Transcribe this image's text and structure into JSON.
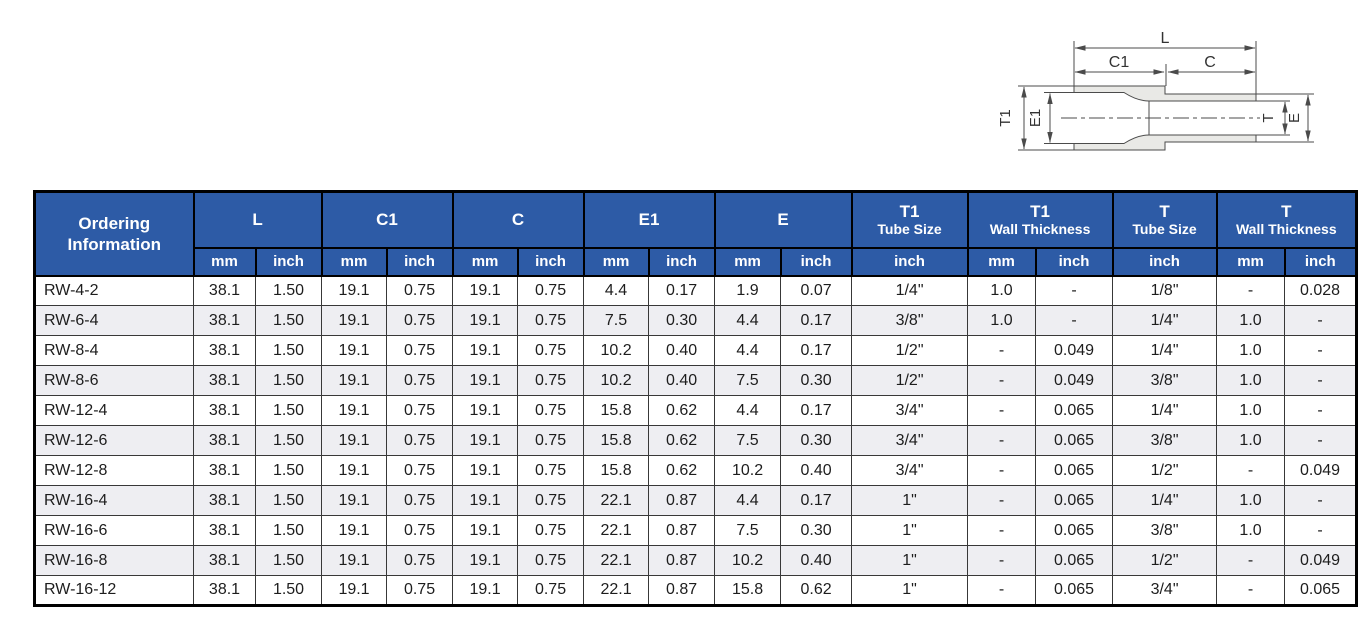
{
  "diagram": {
    "dim_length": "L",
    "dim_c1": "C1",
    "dim_c": "C",
    "dim_t1": "T1",
    "dim_e1": "E1",
    "dim_t": "T",
    "dim_e": "E"
  },
  "table": {
    "ordering_header": "Ordering Information",
    "groups": [
      {
        "label": "L",
        "sublabel": "",
        "sub": [
          "mm",
          "inch"
        ]
      },
      {
        "label": "C1",
        "sublabel": "",
        "sub": [
          "mm",
          "inch"
        ]
      },
      {
        "label": "C",
        "sublabel": "",
        "sub": [
          "mm",
          "inch"
        ]
      },
      {
        "label": "E1",
        "sublabel": "",
        "sub": [
          "mm",
          "inch"
        ]
      },
      {
        "label": "E",
        "sublabel": "",
        "sub": [
          "mm",
          "inch"
        ]
      },
      {
        "label": "T1",
        "sublabel": "Tube Size",
        "sub": [
          "inch"
        ]
      },
      {
        "label": "T1",
        "sublabel": "Wall Thickness",
        "sub": [
          "mm",
          "inch"
        ]
      },
      {
        "label": "T",
        "sublabel": "Tube Size",
        "sub": [
          "inch"
        ]
      },
      {
        "label": "T",
        "sublabel": "Wall Thickness",
        "sub": [
          "mm",
          "inch"
        ]
      }
    ],
    "rows": [
      [
        "RW-4-2",
        "38.1",
        "1.50",
        "19.1",
        "0.75",
        "19.1",
        "0.75",
        "4.4",
        "0.17",
        "1.9",
        "0.07",
        "1/4\"",
        "1.0",
        "-",
        "1/8\"",
        "-",
        "0.028"
      ],
      [
        "RW-6-4",
        "38.1",
        "1.50",
        "19.1",
        "0.75",
        "19.1",
        "0.75",
        "7.5",
        "0.30",
        "4.4",
        "0.17",
        "3/8\"",
        "1.0",
        "-",
        "1/4\"",
        "1.0",
        "-"
      ],
      [
        "RW-8-4",
        "38.1",
        "1.50",
        "19.1",
        "0.75",
        "19.1",
        "0.75",
        "10.2",
        "0.40",
        "4.4",
        "0.17",
        "1/2\"",
        "-",
        "0.049",
        "1/4\"",
        "1.0",
        "-"
      ],
      [
        "RW-8-6",
        "38.1",
        "1.50",
        "19.1",
        "0.75",
        "19.1",
        "0.75",
        "10.2",
        "0.40",
        "7.5",
        "0.30",
        "1/2\"",
        "-",
        "0.049",
        "3/8\"",
        "1.0",
        "-"
      ],
      [
        "RW-12-4",
        "38.1",
        "1.50",
        "19.1",
        "0.75",
        "19.1",
        "0.75",
        "15.8",
        "0.62",
        "4.4",
        "0.17",
        "3/4\"",
        "-",
        "0.065",
        "1/4\"",
        "1.0",
        "-"
      ],
      [
        "RW-12-6",
        "38.1",
        "1.50",
        "19.1",
        "0.75",
        "19.1",
        "0.75",
        "15.8",
        "0.62",
        "7.5",
        "0.30",
        "3/4\"",
        "-",
        "0.065",
        "3/8\"",
        "1.0",
        "-"
      ],
      [
        "RW-12-8",
        "38.1",
        "1.50",
        "19.1",
        "0.75",
        "19.1",
        "0.75",
        "15.8",
        "0.62",
        "10.2",
        "0.40",
        "3/4\"",
        "-",
        "0.065",
        "1/2\"",
        "-",
        "0.049"
      ],
      [
        "RW-16-4",
        "38.1",
        "1.50",
        "19.1",
        "0.75",
        "19.1",
        "0.75",
        "22.1",
        "0.87",
        "4.4",
        "0.17",
        "1\"",
        "-",
        "0.065",
        "1/4\"",
        "1.0",
        "-"
      ],
      [
        "RW-16-6",
        "38.1",
        "1.50",
        "19.1",
        "0.75",
        "19.1",
        "0.75",
        "22.1",
        "0.87",
        "7.5",
        "0.30",
        "1\"",
        "-",
        "0.065",
        "3/8\"",
        "1.0",
        "-"
      ],
      [
        "RW-16-8",
        "38.1",
        "1.50",
        "19.1",
        "0.75",
        "19.1",
        "0.75",
        "22.1",
        "0.87",
        "10.2",
        "0.40",
        "1\"",
        "-",
        "0.065",
        "1/2\"",
        "-",
        "0.049"
      ],
      [
        "RW-16-12",
        "38.1",
        "1.50",
        "19.1",
        "0.75",
        "19.1",
        "0.75",
        "22.1",
        "0.87",
        "15.8",
        "0.62",
        "1\"",
        "-",
        "0.065",
        "3/4\"",
        "-",
        "0.065"
      ]
    ]
  },
  "colors": {
    "header_bg": "#2d5ba6",
    "header_text": "#ffffff",
    "row_alt": "#eeeef2",
    "grid_line": "#383838",
    "tube_wall_fill": "#e9e9e6",
    "drawing_line": "#4b4b4b"
  }
}
